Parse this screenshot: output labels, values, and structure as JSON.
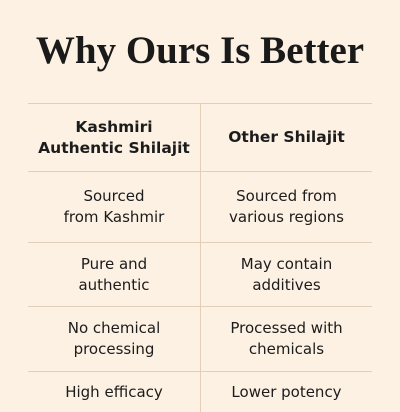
{
  "title": "Why Ours Is Better",
  "table": {
    "header": [
      [
        "Kashmiri",
        "Authentic Shilajit"
      ],
      [
        "Other Shilajit"
      ]
    ],
    "rows": [
      [
        [
          "Sourced",
          "from Kashmir"
        ],
        [
          "Sourced from",
          "various regions"
        ]
      ],
      [
        [
          "Pure and",
          "authentic"
        ],
        [
          "May contain",
          "additives"
        ]
      ],
      [
        [
          "No chemical",
          "processing"
        ],
        [
          "Processed with",
          "chemicals"
        ]
      ],
      [
        [
          "High efficacy"
        ],
        [
          "Lower potency"
        ]
      ]
    ]
  }
}
